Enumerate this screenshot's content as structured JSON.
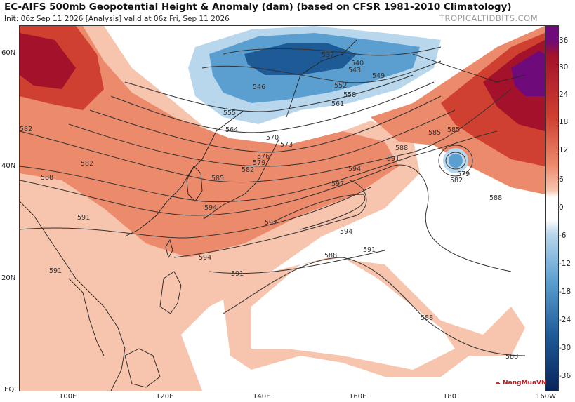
{
  "header": {
    "title": "EC-AIFS 500mb Geopotential Height & Anomaly (dam) (based on CFSR 1981-2010 Climatology)",
    "subtitle": "Init: 06z Sep 11 2026  [Analysis]  valid at 06z Fri, Sep 11 2026",
    "brand": "TROPICALTIDBITS.COM"
  },
  "axes": {
    "lat_labels": [
      "60N",
      "40N",
      "20N",
      "EQ"
    ],
    "lon_labels": [
      "100E",
      "120E",
      "140E",
      "160E",
      "180",
      "160W"
    ]
  },
  "colorbar": {
    "ticks": [
      "36",
      "30",
      "24",
      "18",
      "12",
      "6",
      "0",
      "-6",
      "-12",
      "-18",
      "-24",
      "-30",
      "-36"
    ],
    "colors": {
      "deep_purple": "#6e0a7a",
      "dark_red": "#a3122a",
      "red": "#cf4030",
      "salmon": "#ec8a6c",
      "light_salmon": "#f7c4ae",
      "neutral": "#ffffff",
      "light_blue": "#b9d7ec",
      "blue": "#5b9fd0",
      "dark_blue": "#1e5a96",
      "navy": "#08245a"
    }
  },
  "contour_labels": [
    "537",
    "540",
    "543",
    "546",
    "549",
    "552",
    "555",
    "558",
    "561",
    "564",
    "570",
    "573",
    "576",
    "579",
    "582",
    "582",
    "582",
    "585",
    "585",
    "585",
    "588",
    "588",
    "588",
    "588",
    "588",
    "591",
    "591",
    "591",
    "591",
    "591",
    "594",
    "594",
    "594",
    "594",
    "597",
    "597",
    "579",
    "582",
    "588"
  ],
  "watermark": "NangMuaVN"
}
